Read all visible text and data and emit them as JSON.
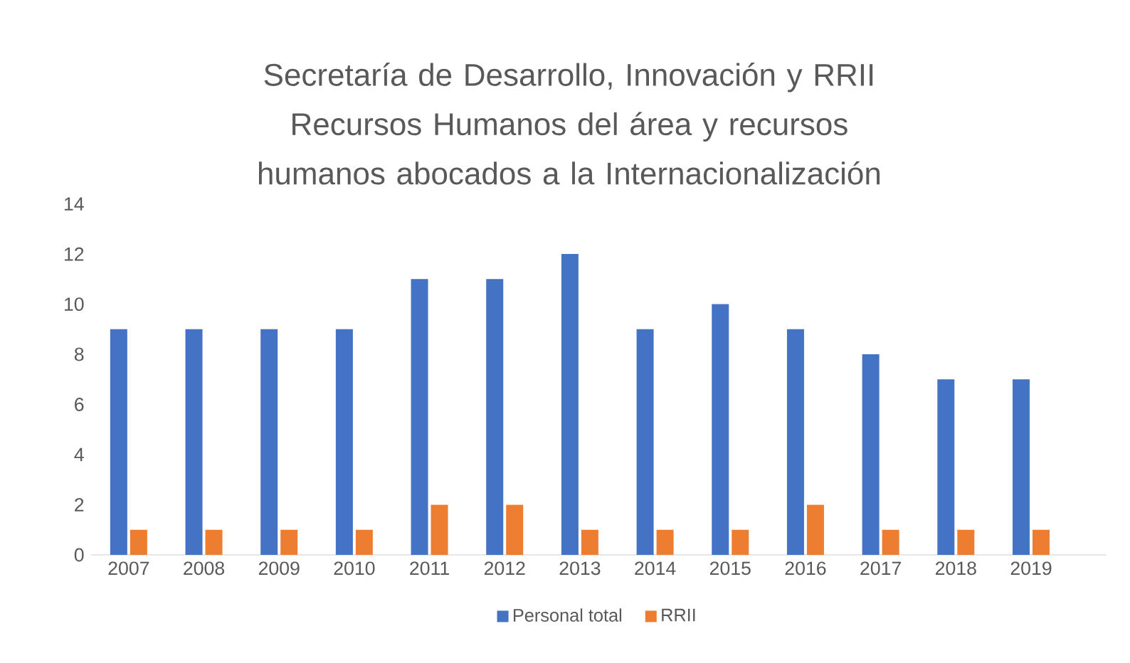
{
  "chart_data": {
    "type": "bar",
    "title": "Secretaría de Desarrollo, Innovación y RRII",
    "subtitle": "Recursos Humanos del área y recursos humanos abocados a la Internacionalización",
    "categories": [
      "2007",
      "2008",
      "2009",
      "2010",
      "2011",
      "2012",
      "2013",
      "2014",
      "2015",
      "2016",
      "2017",
      "2018",
      "2019"
    ],
    "series": [
      {
        "name": "Personal total",
        "color": "#4472c4",
        "values": [
          9,
          9,
          9,
          9,
          11,
          11,
          12,
          9,
          10,
          9,
          8,
          7,
          7
        ]
      },
      {
        "name": "RRII",
        "color": "#ed7d31",
        "values": [
          1,
          1,
          1,
          1,
          2,
          2,
          1,
          1,
          1,
          2,
          1,
          1,
          1
        ]
      }
    ],
    "ylim": [
      0,
      14
    ],
    "yticks": [
      0,
      2,
      4,
      6,
      8,
      10,
      12,
      14
    ],
    "legend": "bottom"
  }
}
